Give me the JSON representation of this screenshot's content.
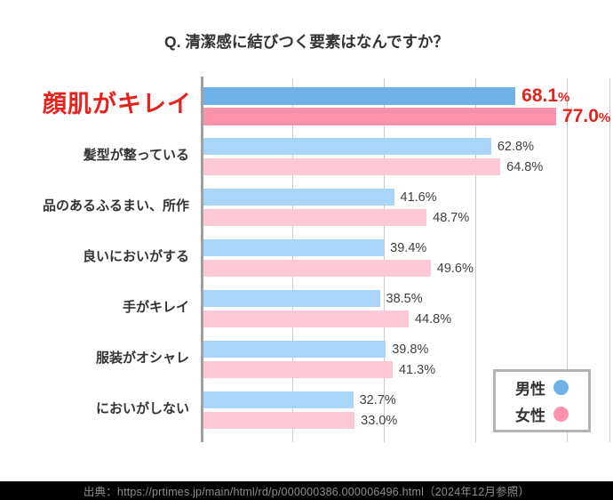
{
  "title": "Q. 清潔感に結びつく要素はなんですか？",
  "colors": {
    "male": "#6fb2e8",
    "female": "#fd92ad",
    "male_muted": "#a9d6f8",
    "female_muted": "#fdc9d6",
    "highlight_red": "#e3231c",
    "gridline": "#cccccc",
    "axis": "#a0a0a0",
    "footer_bg": "#000000",
    "footer_text": "#8e8e8e"
  },
  "legend": {
    "male_label": "男性",
    "female_label": "女性"
  },
  "source": "出典：https://prtimes.jp/main/html/rd/p/000000386.000006496.html（2024年12月参照）",
  "chart_data": {
    "type": "bar",
    "orientation": "horizontal",
    "title": "Q. 清潔感に結びつく要素はなんですか？",
    "categories": [
      "顔肌がキレイ",
      "髪型が整っている",
      "品のあるふるまい、所作",
      "良いにおいがする",
      "手がキレイ",
      "服装がオシャレ",
      "においがしない"
    ],
    "series": [
      {
        "name": "男性",
        "color": "#6fb2e8",
        "values": [
          68.1,
          62.8,
          41.6,
          39.4,
          38.5,
          39.8,
          32.7
        ]
      },
      {
        "name": "女性",
        "color": "#fd92ad",
        "values": [
          77.0,
          64.8,
          48.7,
          49.6,
          44.8,
          41.3,
          33.0
        ]
      }
    ],
    "highlighted_category": "顔肌がキレイ",
    "value_suffix": "%",
    "xlim": [
      0,
      89.4
    ],
    "gridline_interval": 20,
    "grid": true,
    "legend_position": "bottom-right"
  }
}
